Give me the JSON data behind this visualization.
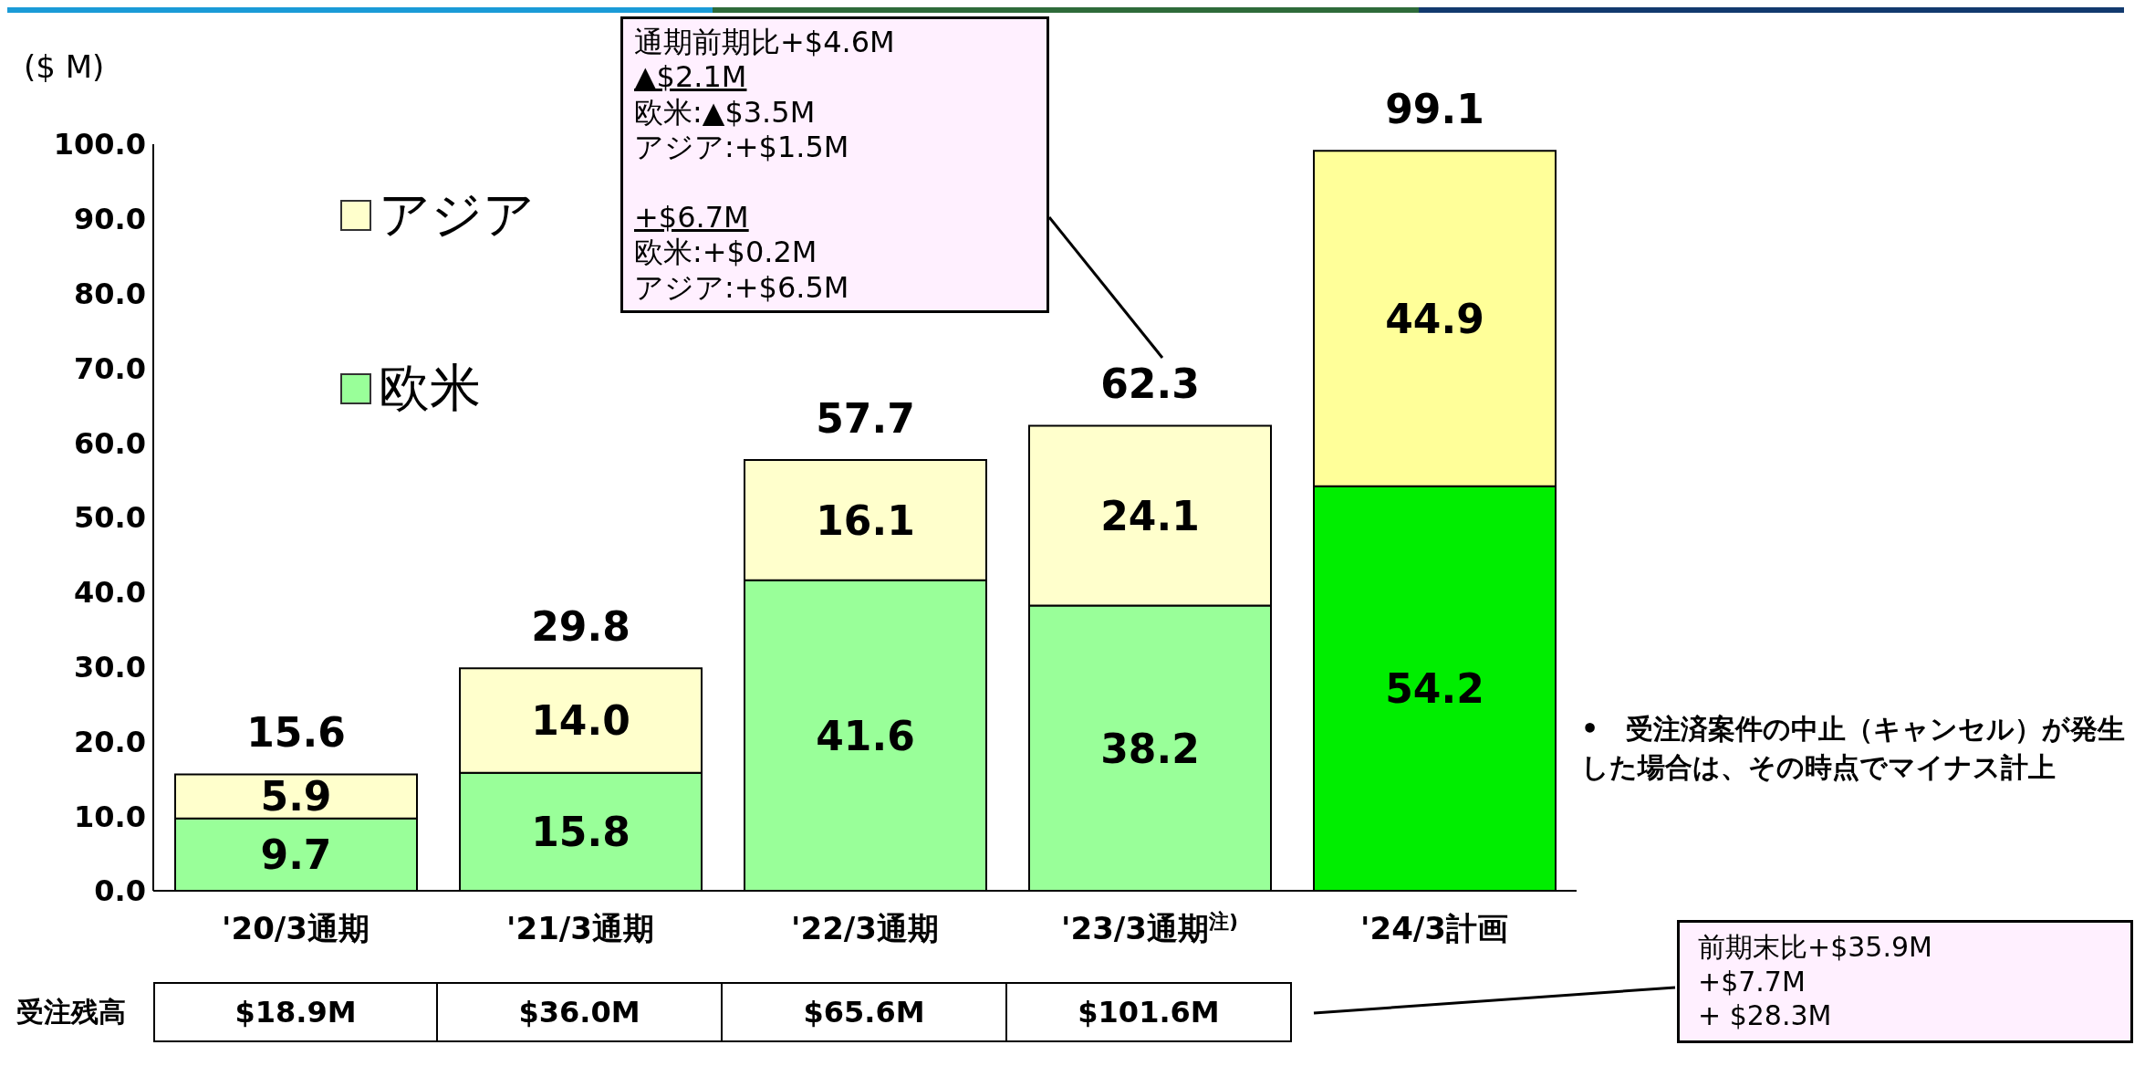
{
  "chart_data": {
    "type": "bar",
    "stacked": true,
    "ylabel": "($ M)",
    "categories": [
      "'20/3通期",
      "'21/3通期",
      "'22/3通期",
      "'23/3通期$^{注)}$",
      "'24/3計画"
    ],
    "series": [
      {
        "name": "欧米",
        "color": "#99ff99",
        "colors": [
          "#99ff99",
          "#99ff99",
          "#99ff99",
          "#99ff99",
          "#00ee00"
        ],
        "values": [
          9.7,
          15.8,
          41.6,
          38.2,
          54.2
        ],
        "value_labels": [
          "9.7",
          "15.8",
          "41.6",
          "38.2",
          "54.2"
        ]
      },
      {
        "name": "アジア",
        "color": "#ffffcc",
        "colors": [
          "#ffffcc",
          "#ffffcc",
          "#ffffcc",
          "#ffffcc",
          "#ffff99"
        ],
        "values": [
          5.9,
          14.0,
          16.1,
          24.1,
          44.9
        ],
        "value_labels": [
          "5.9",
          "14.0",
          "16.1",
          "24.1",
          "44.9"
        ]
      }
    ],
    "ylim": [
      0,
      100
    ],
    "yticks": [
      {
        "value": 0,
        "label": "0.0"
      },
      {
        "value": 10,
        "label": "10.0"
      },
      {
        "value": 20,
        "label": "20.0"
      },
      {
        "value": 30,
        "label": "30.0"
      },
      {
        "value": 40,
        "label": "40.0"
      },
      {
        "value": 50,
        "label": "50.0"
      },
      {
        "value": 60,
        "label": "60.0"
      },
      {
        "value": 70,
        "label": "70.0"
      },
      {
        "value": 80,
        "label": "80.0"
      },
      {
        "value": 90,
        "label": "90.0"
      },
      {
        "value": 100,
        "label": "100.0"
      }
    ],
    "totals": [
      "15.6",
      "29.8",
      "57.7",
      "62.3",
      "99.1"
    ],
    "legend": "top left",
    "annotations": [
      "通期前期比+$4.6M\n▲$2.1M\n欧米:▲$3.5M\nアジア:+$1.5M\n\n+$6.7M\n欧米:+$0.2M\nアジア:+$6.5M",
      "•　受注済案件の中止（キャンセル）が発生した場合は、その時点でマイナス計上",
      "受注残高",
      "$18.9M",
      "$36.0M",
      "$65.6M",
      "$101.6M",
      "前期末比+$35.9M\n+$7.7M\n+ $28.3M"
    ]
  }
}
